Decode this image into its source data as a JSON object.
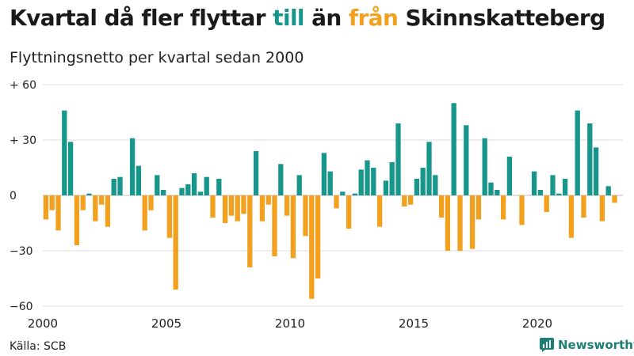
{
  "header": {
    "title_part1": "Kvartal då fler flyttar ",
    "title_till": "till",
    "title_part2": " än ",
    "title_fran": "från",
    "title_part3": " Skinnskatteberg",
    "subtitle": "Flyttningsnetto per kvartal sedan 2000"
  },
  "footer": {
    "source": "Källa: SCB",
    "brand": "Newsworthy"
  },
  "colors": {
    "positive": "#17978c",
    "negative": "#f2a01e",
    "grid": "#dddddd",
    "brand": "#1c7f75"
  },
  "chart_data": {
    "type": "bar",
    "title": "Kvartal då fler flyttar till än från Skinnskatteberg",
    "subtitle": "Flyttningsnetto per kvartal sedan 2000",
    "xlabel": "",
    "ylabel": "",
    "start_year": 2000,
    "quarters_per_year": 4,
    "ylim": [
      -60,
      60
    ],
    "y_ticks": [
      60,
      30,
      0,
      -30,
      -60
    ],
    "y_tick_labels": [
      "+ 60",
      "+ 30",
      "0",
      "−30",
      "−60"
    ],
    "x_ticks": [
      2000,
      2005,
      2010,
      2015,
      2020
    ],
    "x_tick_labels": [
      "2000",
      "2005",
      "2010",
      "2015",
      "2020"
    ],
    "values": [
      -13,
      -8,
      -19,
      46,
      29,
      -27,
      -8,
      1,
      -14,
      -5,
      -17,
      9,
      10,
      0,
      31,
      16,
      -19,
      -8,
      11,
      3,
      -23,
      -51,
      4,
      6,
      12,
      2,
      10,
      -12,
      9,
      -15,
      -11,
      -14,
      -10,
      -39,
      24,
      -14,
      -5,
      -33,
      17,
      -11,
      -34,
      11,
      -22,
      -56,
      -45,
      23,
      13,
      -7,
      2,
      -18,
      1,
      14,
      19,
      15,
      -17,
      8,
      18,
      39,
      -6,
      -5,
      9,
      15,
      29,
      11,
      -12,
      -30,
      50,
      -30,
      38,
      -29,
      -13,
      31,
      7,
      3,
      -13,
      21,
      0,
      -16,
      0,
      13,
      3,
      -9,
      11,
      1,
      9,
      -23,
      46,
      -12,
      39,
      26,
      -14,
      5,
      -4
    ]
  }
}
